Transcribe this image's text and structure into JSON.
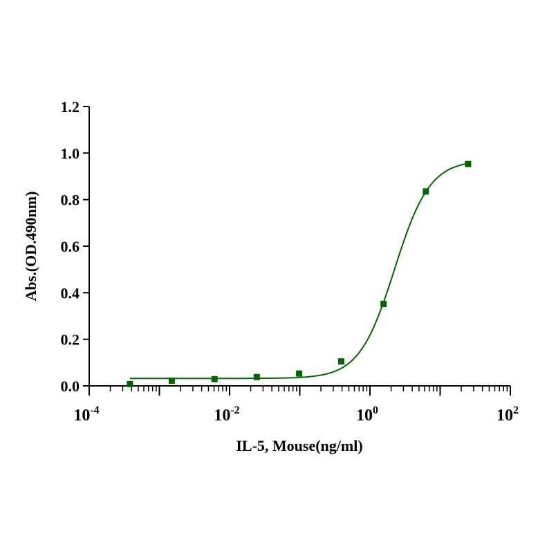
{
  "chart_data": {
    "type": "scatter",
    "xlabel": "IL-5, Mouse(ng/ml)",
    "ylabel": "Abs.(OD.490nm)",
    "xscale": "log",
    "xlim": [
      0.0001,
      100
    ],
    "ylim": [
      0,
      1.2
    ],
    "x_tick_labels": [
      {
        "base": "10",
        "exp": "-4",
        "value": 0.0001
      },
      {
        "base": "10",
        "exp": "-2",
        "value": 0.01
      },
      {
        "base": "10",
        "exp": "0",
        "value": 1
      },
      {
        "base": "10",
        "exp": "2",
        "value": 100
      }
    ],
    "y_ticks": [
      0.0,
      0.2,
      0.4,
      0.6,
      0.8,
      1.0,
      1.2
    ],
    "y_tick_labels": [
      "0.0",
      "0.2",
      "0.4",
      "0.6",
      "0.8",
      "1.0",
      "1.2"
    ],
    "grid": false,
    "color": "#006400",
    "points": {
      "x": [
        0.00038,
        0.0015,
        0.0061,
        0.0244,
        0.098,
        0.39,
        1.5625,
        6.25,
        25
      ],
      "y": [
        0.008,
        0.022,
        0.029,
        0.038,
        0.053,
        0.105,
        0.352,
        0.835,
        0.953
      ]
    },
    "fit": {
      "model": "4PL",
      "bottom": 0.032,
      "top": 0.97,
      "ec50": 2.24,
      "hill": 1.73
    }
  }
}
